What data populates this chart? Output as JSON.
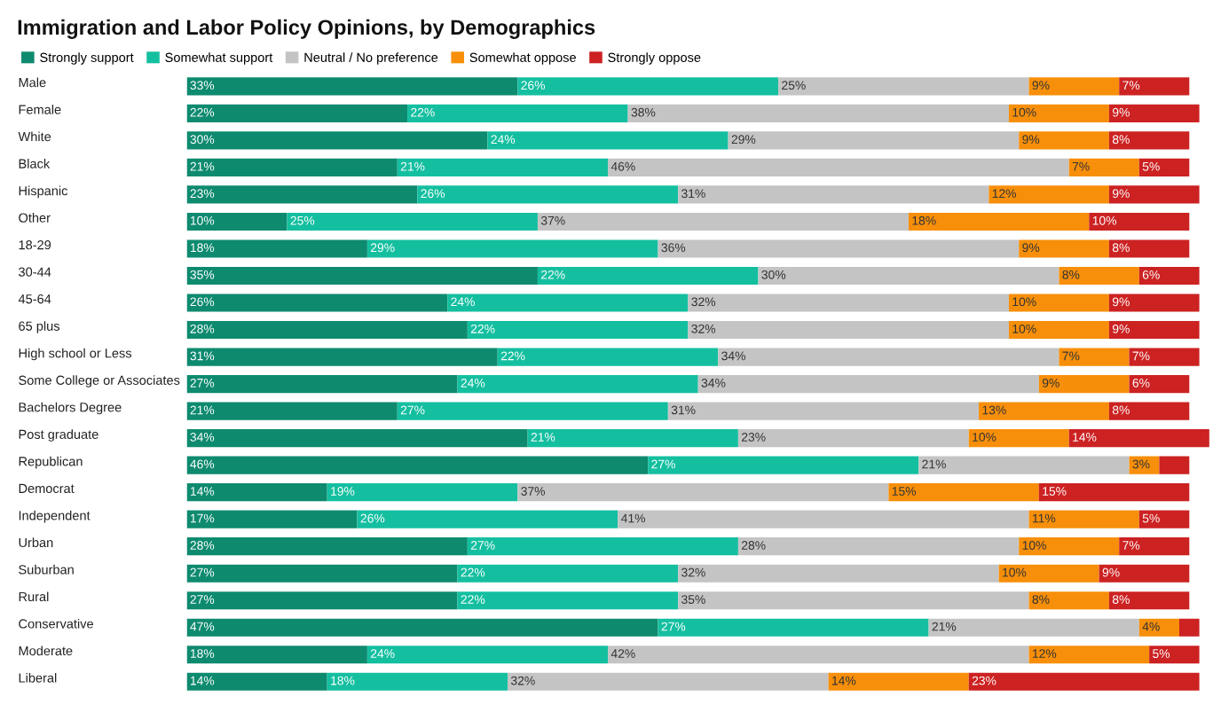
{
  "chart_data": {
    "type": "bar",
    "orientation": "horizontal",
    "stacked": true,
    "xlim": [
      0,
      102
    ],
    "tick_labels": false,
    "title": "Immigration and Labor Policy Opinions, by Demographics",
    "legend": "top",
    "categories": [
      "Male",
      "Female",
      "White",
      "Black",
      "Hispanic",
      "Other",
      "18-29",
      "30-44",
      "45-64",
      "65 plus",
      "High school or Less",
      "Some College or Associates",
      "Bachelors Degree",
      "Post graduate",
      "Republican",
      "Democrat",
      "Independent",
      "Urban",
      "Suburban",
      "Rural",
      "Conservative",
      "Moderate",
      "Liberal"
    ],
    "series": [
      {
        "name": "Strongly support",
        "color": "#0e8a6f",
        "values": [
          33,
          22,
          30,
          21,
          23,
          10,
          18,
          35,
          26,
          28,
          31,
          27,
          21,
          34,
          46,
          14,
          17,
          28,
          27,
          27,
          47,
          18,
          14
        ],
        "value_labels": [
          "33%",
          "22%",
          "30%",
          "21%",
          "23%",
          "10%",
          "18%",
          "35%",
          "26%",
          "28%",
          "31%",
          "27%",
          "21%",
          "34%",
          "46%",
          "14%",
          "17%",
          "28%",
          "27%",
          "27%",
          "47%",
          "18%",
          "14%"
        ]
      },
      {
        "name": "Somewhat support",
        "color": "#14bfa0",
        "values": [
          26,
          22,
          24,
          21,
          26,
          25,
          29,
          22,
          24,
          22,
          22,
          24,
          27,
          21,
          27,
          19,
          26,
          27,
          22,
          22,
          27,
          24,
          18
        ],
        "value_labels": [
          "26%",
          "22%",
          "24%",
          "21%",
          "26%",
          "25%",
          "29%",
          "22%",
          "24%",
          "22%",
          "22%",
          "24%",
          "27%",
          "21%",
          "27%",
          "19%",
          "26%",
          "27%",
          "22%",
          "22%",
          "27%",
          "24%",
          "18%"
        ]
      },
      {
        "name": "Neutral / No preference",
        "color": "#c4c4c4",
        "values": [
          25,
          38,
          29,
          46,
          31,
          37,
          36,
          30,
          32,
          32,
          34,
          34,
          31,
          23,
          21,
          37,
          41,
          28,
          32,
          35,
          21,
          42,
          32
        ],
        "value_labels": [
          "25%",
          "38%",
          "29%",
          "46%",
          "31%",
          "37%",
          "36%",
          "30%",
          "32%",
          "32%",
          "34%",
          "34%",
          "31%",
          "23%",
          "21%",
          "37%",
          "41%",
          "28%",
          "32%",
          "35%",
          "21%",
          "42%",
          "32%"
        ]
      },
      {
        "name": "Somewhat oppose",
        "color": "#f78f0a",
        "values": [
          9,
          10,
          9,
          7,
          12,
          18,
          9,
          8,
          10,
          10,
          7,
          9,
          13,
          10,
          3,
          15,
          11,
          10,
          10,
          8,
          4,
          12,
          14
        ],
        "value_labels": [
          "9%",
          "10%",
          "9%",
          "7%",
          "12%",
          "18%",
          "9%",
          "8%",
          "10%",
          "10%",
          "7%",
          "9%",
          "13%",
          "10%",
          "3%",
          "15%",
          "11%",
          "10%",
          "10%",
          "8%",
          "4%",
          "12%",
          "14%"
        ]
      },
      {
        "name": "Strongly oppose",
        "color": "#cc2222",
        "values": [
          7,
          9,
          8,
          5,
          9,
          10,
          8,
          6,
          9,
          9,
          7,
          6,
          8,
          14,
          3,
          15,
          5,
          7,
          9,
          8,
          2,
          5,
          23
        ],
        "value_labels": [
          "7%",
          "9%",
          "8%",
          "5%",
          "9%",
          "10%",
          "8%",
          "6%",
          "9%",
          "9%",
          "7%",
          "6%",
          "8%",
          "14%",
          null,
          "15%",
          "5%",
          "7%",
          "9%",
          "8%",
          null,
          "5%",
          "23%"
        ]
      }
    ]
  }
}
